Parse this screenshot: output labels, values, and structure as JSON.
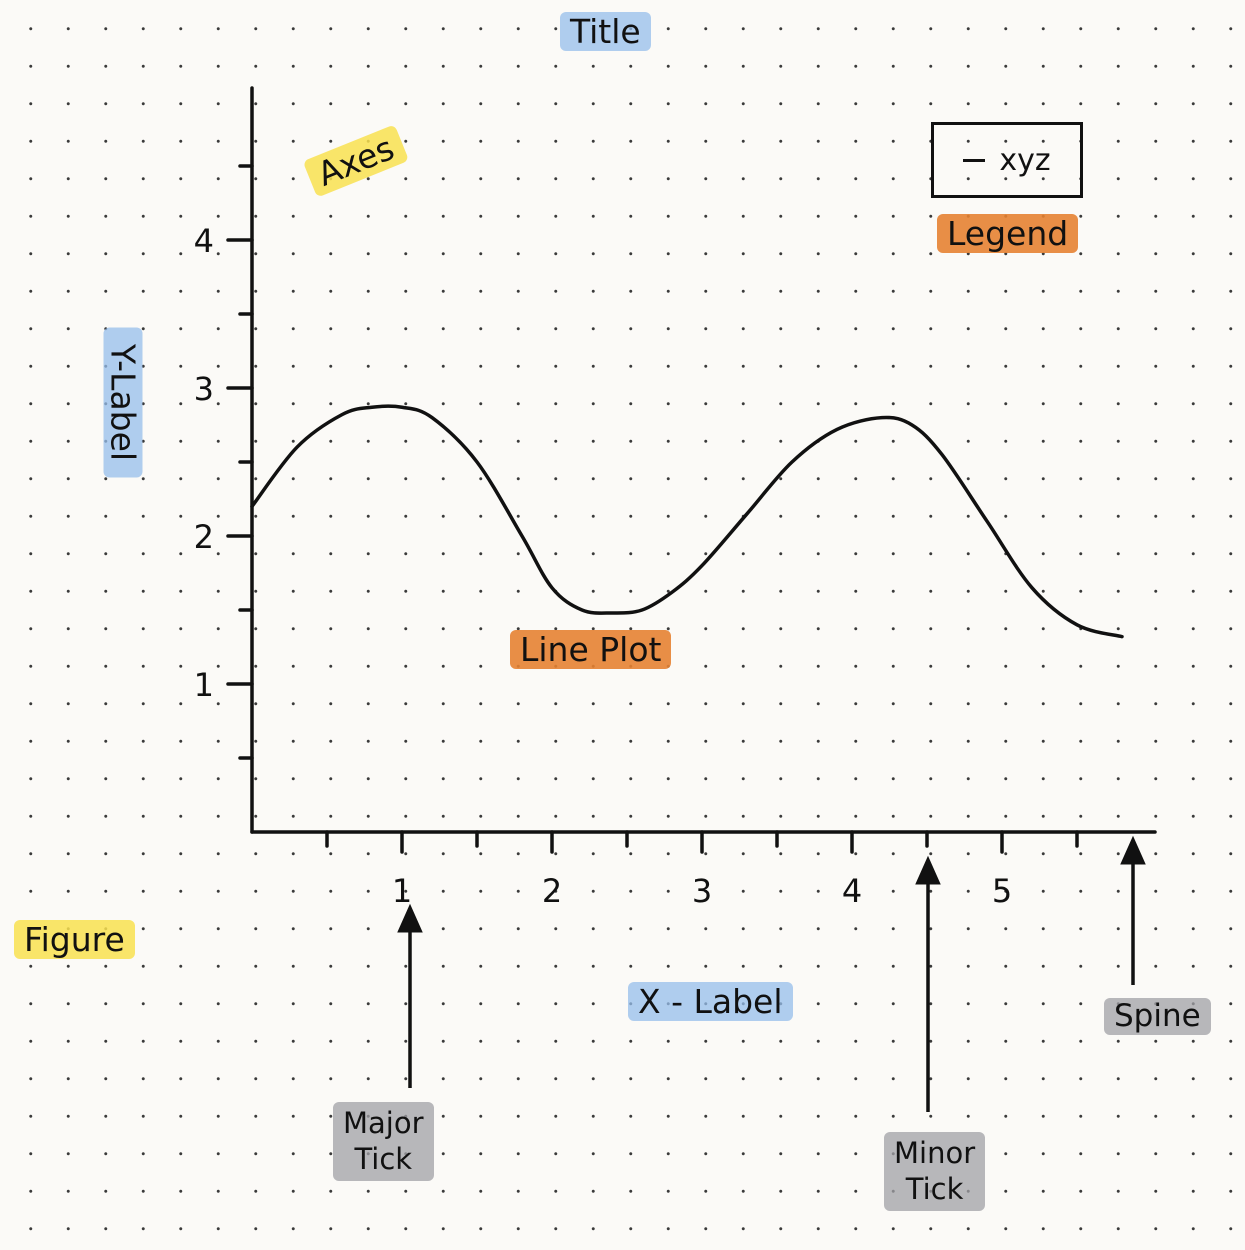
{
  "annotations": {
    "title": "Title",
    "axes": "Axes",
    "legend": "Legend",
    "y_label": "Y-Label",
    "x_label": "X - Label",
    "line_plot": "Line Plot",
    "figure": "Figure",
    "major_tick": [
      "Major",
      "Tick"
    ],
    "minor_tick": [
      "Minor",
      "Tick"
    ],
    "spine": "Spine"
  },
  "legend_entry": "xyz",
  "highlight_colors": {
    "blue": "#96bee b",
    "yellow": "#f8e050",
    "orange": "#e68232",
    "gray": "#a0a0a5"
  },
  "chart_data": {
    "type": "line",
    "title": "",
    "xlabel": "",
    "ylabel": "",
    "xlim": [
      0,
      5.8
    ],
    "ylim": [
      0,
      5
    ],
    "x_major_ticks": [
      1,
      2,
      3,
      4,
      5
    ],
    "x_tick_labels": [
      "1",
      "2",
      "3",
      "4",
      "5"
    ],
    "x_minor_step": 0.5,
    "y_major_ticks": [
      1,
      2,
      3,
      4
    ],
    "y_tick_labels": [
      "1",
      "2",
      "3",
      "4"
    ],
    "y_minor_step": 0.5,
    "grid": false,
    "legend_position": "top-right",
    "series": [
      {
        "name": "xyz",
        "x": [
          0.0,
          0.3,
          0.6,
          0.8,
          1.0,
          1.2,
          1.5,
          1.8,
          2.0,
          2.2,
          2.4,
          2.6,
          2.8,
          3.0,
          3.3,
          3.6,
          3.9,
          4.2,
          4.4,
          4.6,
          4.9,
          5.2,
          5.5,
          5.8
        ],
        "y": [
          2.2,
          2.6,
          2.82,
          2.87,
          2.87,
          2.8,
          2.5,
          2.0,
          1.65,
          1.5,
          1.48,
          1.5,
          1.62,
          1.8,
          2.15,
          2.5,
          2.72,
          2.8,
          2.75,
          2.55,
          2.1,
          1.65,
          1.4,
          1.32
        ]
      }
    ]
  }
}
